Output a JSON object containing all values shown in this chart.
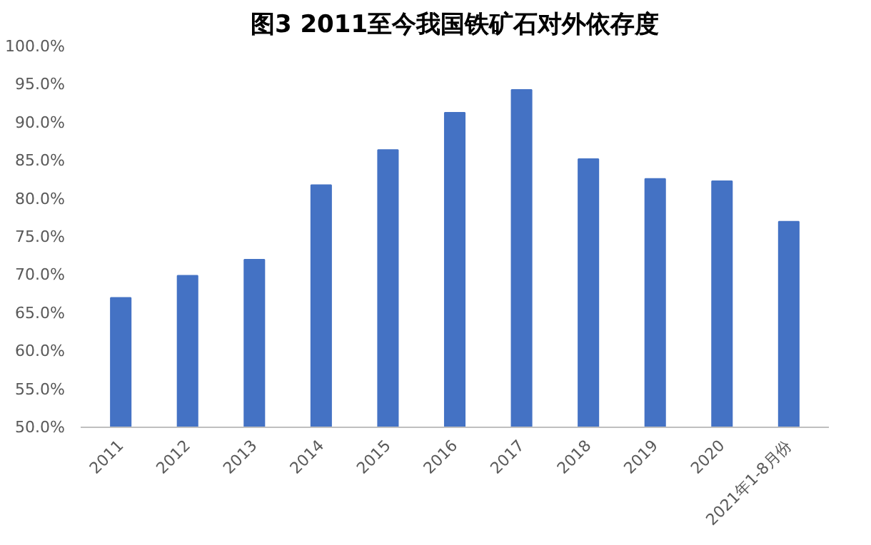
{
  "chart_data": {
    "type": "bar",
    "title": "图3 2011至今我国铁矿石对外依存度",
    "categories": [
      "2011",
      "2012",
      "2013",
      "2014",
      "2015",
      "2016",
      "2017",
      "2018",
      "2019",
      "2020",
      "2021年1-8月份"
    ],
    "values": [
      67.0,
      69.9,
      72.0,
      81.8,
      86.4,
      91.3,
      94.3,
      85.2,
      82.6,
      82.3,
      77.0
    ],
    "color": "#4472c4",
    "ylim": [
      50,
      100
    ],
    "yticks": [
      {
        "value": 50,
        "label": "50.0%"
      },
      {
        "value": 55,
        "label": "55.0%"
      },
      {
        "value": 60,
        "label": "60.0%"
      },
      {
        "value": 65,
        "label": "65.0%"
      },
      {
        "value": 70,
        "label": "70.0%"
      },
      {
        "value": 75,
        "label": "75.0%"
      },
      {
        "value": 80,
        "label": "80.0%"
      },
      {
        "value": 85,
        "label": "85.0%"
      },
      {
        "value": 90,
        "label": "90.0%"
      },
      {
        "value": 95,
        "label": "95.0%"
      },
      {
        "value": 100,
        "label": "100.0%"
      }
    ],
    "grid": false
  }
}
